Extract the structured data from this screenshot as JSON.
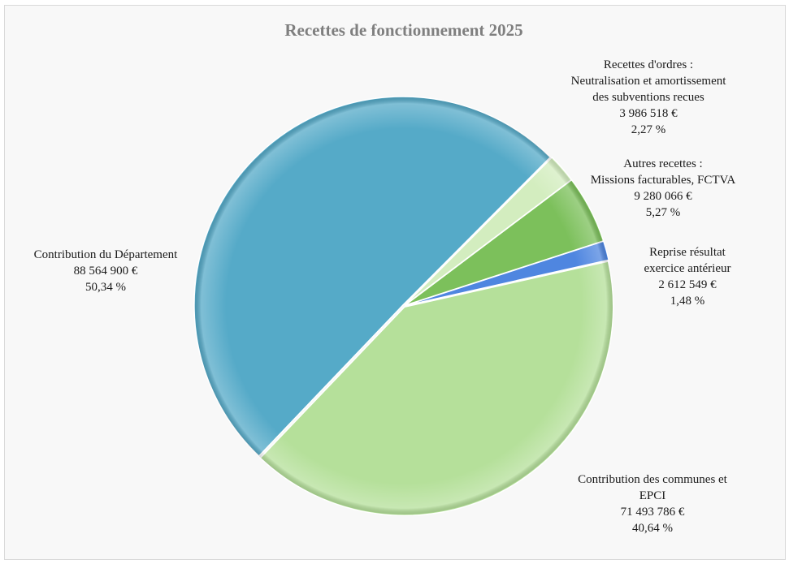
{
  "chart_data": {
    "type": "pie",
    "title": "Recettes de fonctionnement 2025",
    "slices": [
      {
        "label_lines": [
          "Reprise résultat",
          "exercice antérieur"
        ],
        "value_text": "2 612 549 €",
        "percent_text": "1,48 %",
        "value": 2612549,
        "percent": 1.48,
        "color": "#4f86e0"
      },
      {
        "label_lines": [
          "Contribution des communes et",
          "EPCI"
        ],
        "value_text": "71 493 786 €",
        "percent_text": "40,64 %",
        "value": 71493786,
        "percent": 40.64,
        "color": "#b5e09a"
      },
      {
        "label_lines": [
          "Contribution du Département"
        ],
        "value_text": "88 564 900 €",
        "percent_text": "50,34 %",
        "value": 88564900,
        "percent": 50.34,
        "color": "#55aac8"
      },
      {
        "label_lines": [
          "Recettes d'ordres :",
          "Neutralisation et amortissement",
          "des subventions recues"
        ],
        "value_text": "3 986 518 €",
        "percent_text": "2,27 %",
        "value": 3986518,
        "percent": 2.27,
        "color": "#d3edbf"
      },
      {
        "label_lines": [
          "Autres recettes :",
          "Missions facturables, FCTVA"
        ],
        "value_text": "9 280 066 €",
        "percent_text": "5,27 %",
        "value": 9280066,
        "percent": 5.27,
        "color": "#7cc05b"
      }
    ]
  }
}
